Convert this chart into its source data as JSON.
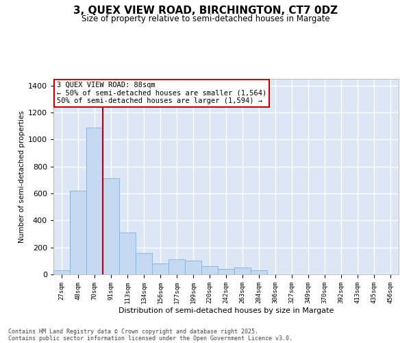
{
  "title": "3, QUEX VIEW ROAD, BIRCHINGTON, CT7 0DZ",
  "subtitle": "Size of property relative to semi-detached houses in Margate",
  "xlabel": "Distribution of semi-detached houses by size in Margate",
  "ylabel": "Number of semi-detached properties",
  "categories": [
    "27sqm",
    "48sqm",
    "70sqm",
    "91sqm",
    "113sqm",
    "134sqm",
    "156sqm",
    "177sqm",
    "199sqm",
    "220sqm",
    "242sqm",
    "263sqm",
    "284sqm",
    "306sqm",
    "327sqm",
    "349sqm",
    "370sqm",
    "392sqm",
    "413sqm",
    "435sqm",
    "456sqm"
  ],
  "values": [
    30,
    620,
    1090,
    710,
    310,
    160,
    80,
    110,
    100,
    60,
    40,
    50,
    30,
    0,
    0,
    0,
    0,
    0,
    0,
    0,
    0
  ],
  "bar_color": "#c5d9f1",
  "bar_edge_color": "#8db4e2",
  "vline_color": "#c00000",
  "annotation_text": "3 QUEX VIEW ROAD: 88sqm\n← 50% of semi-detached houses are smaller (1,564)\n50% of semi-detached houses are larger (1,594) →",
  "annotation_box_color": "#c00000",
  "ylim": [
    0,
    1450
  ],
  "yticks": [
    0,
    200,
    400,
    600,
    800,
    1000,
    1200,
    1400
  ],
  "background_color": "#dce6f5",
  "footer_line1": "Contains HM Land Registry data © Crown copyright and database right 2025.",
  "footer_line2": "Contains public sector information licensed under the Open Government Licence v3.0."
}
